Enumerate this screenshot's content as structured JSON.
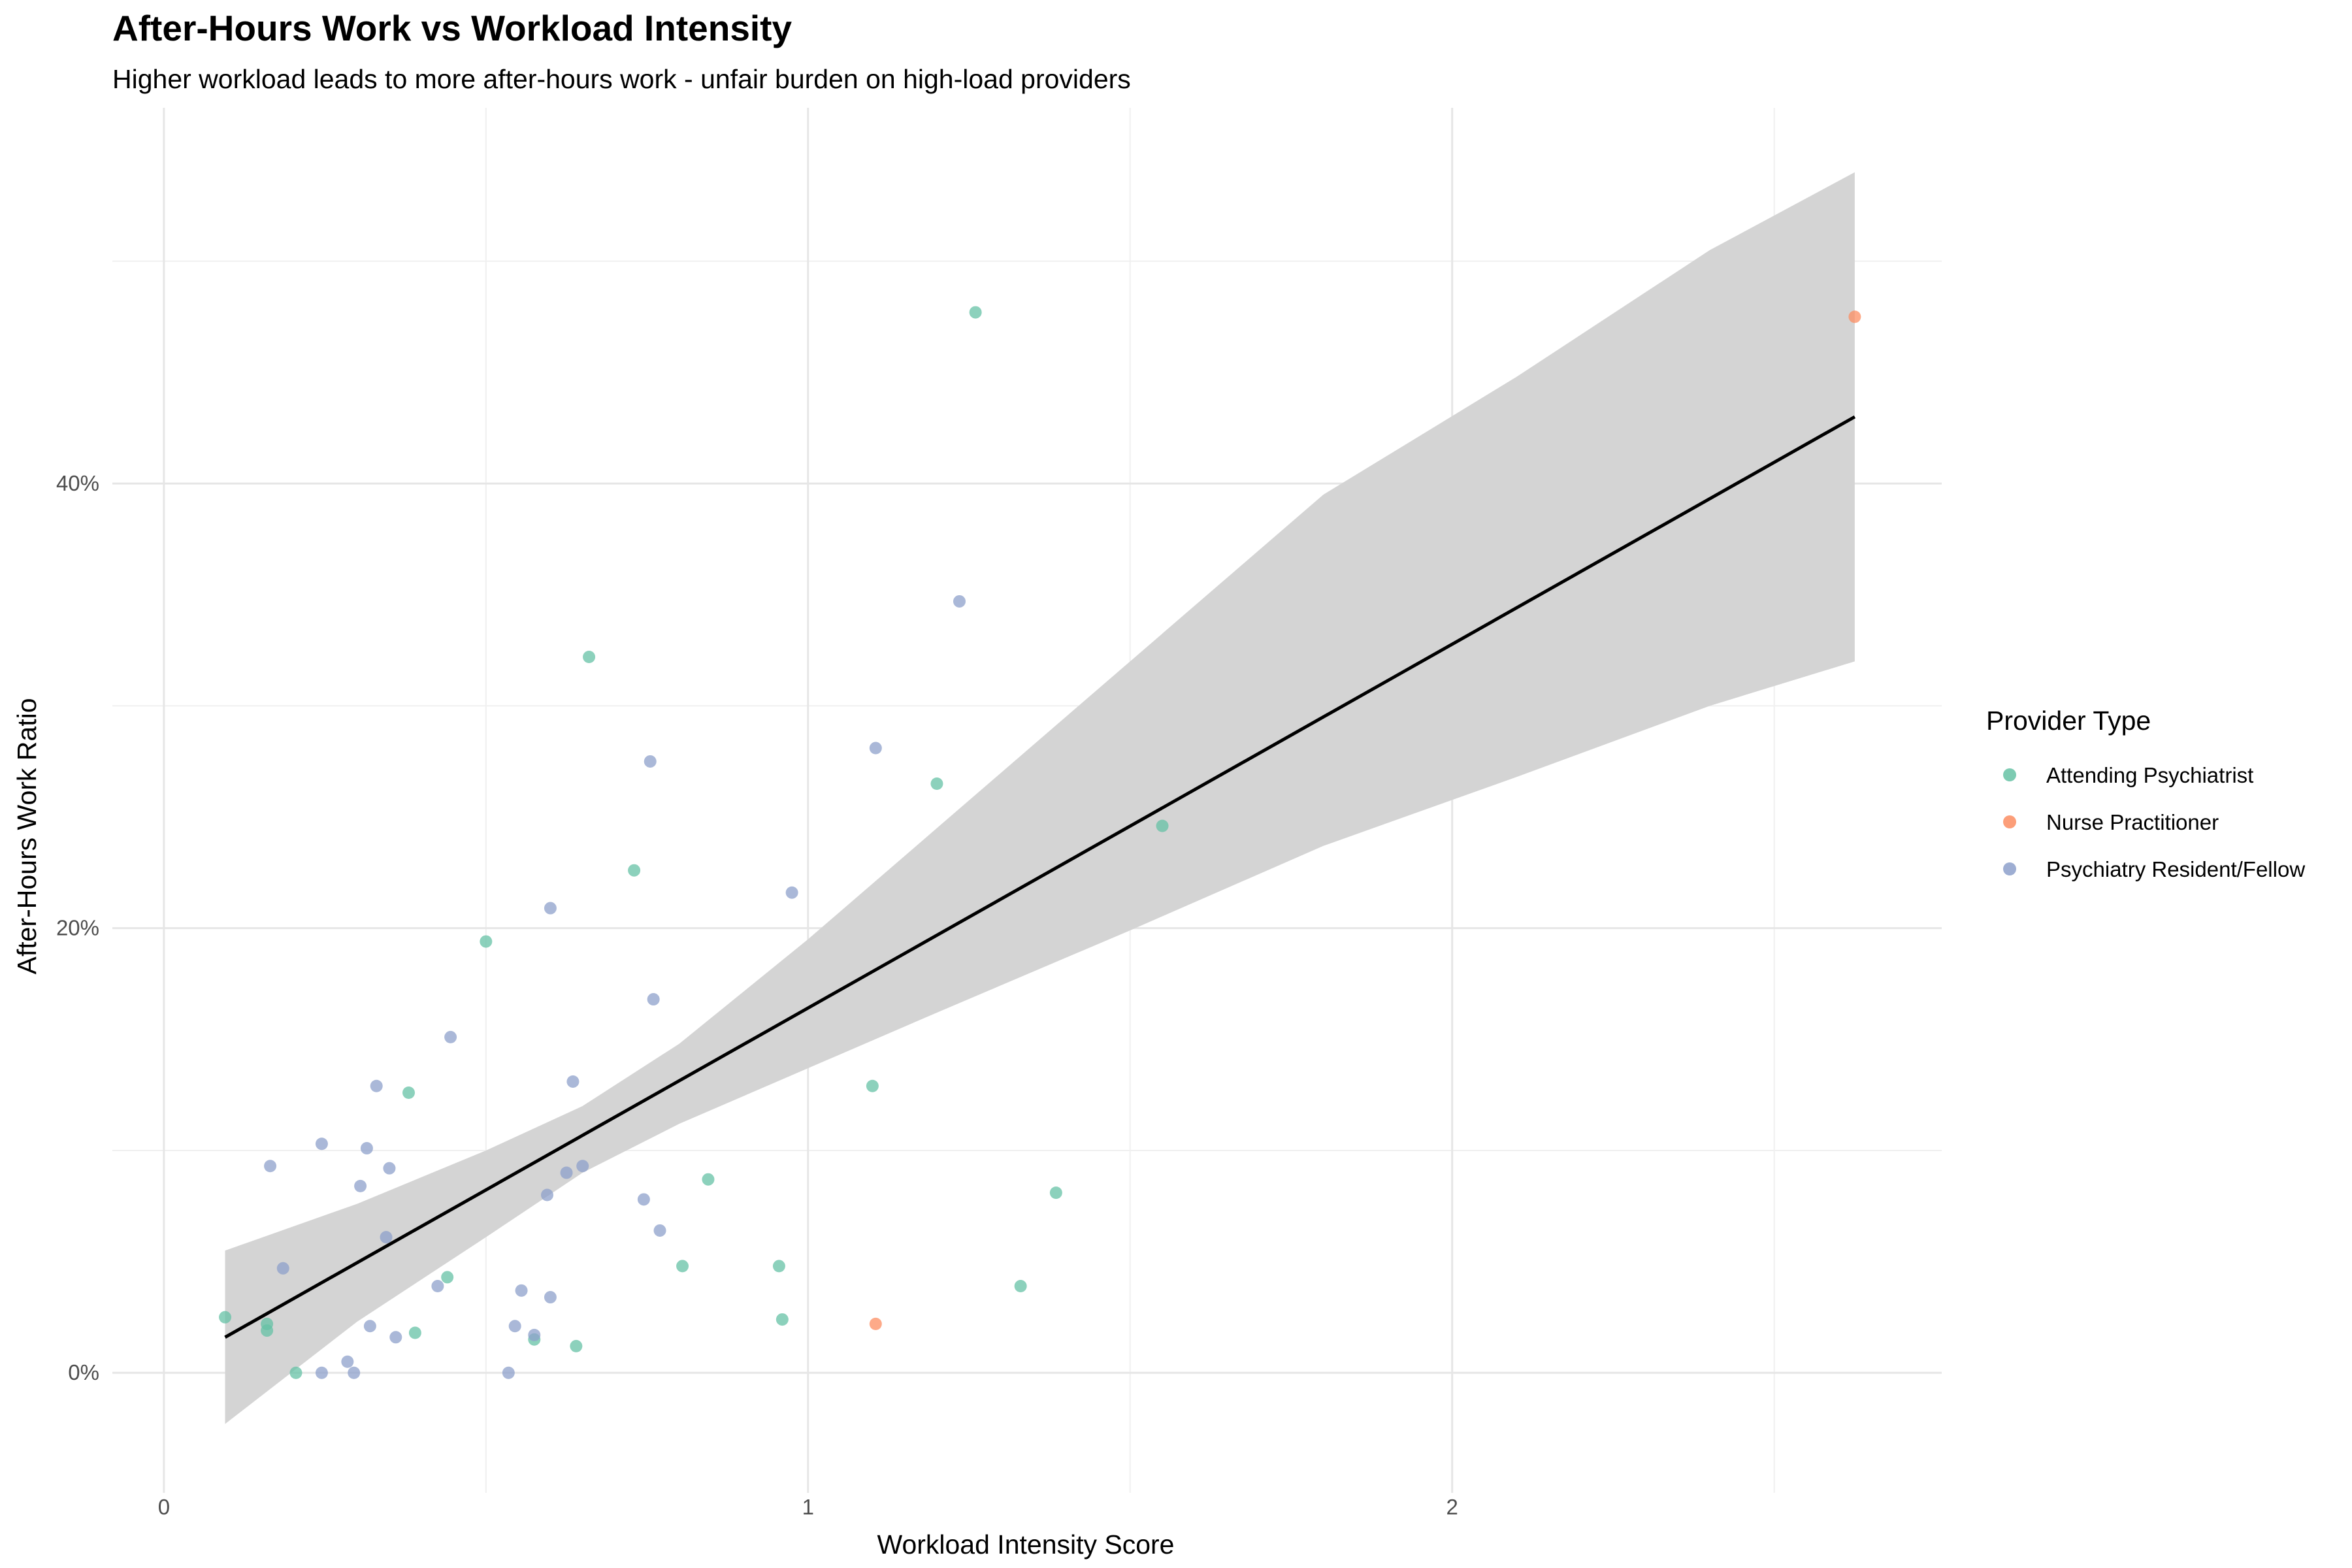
{
  "chart_data": {
    "type": "scatter",
    "title": "After-Hours Work vs Workload Intensity",
    "subtitle": "Higher workload leads to more after-hours work - unfair burden on high-load providers",
    "xlabel": "Workload Intensity Score",
    "ylabel": "After-Hours Work Ratio",
    "xlim": [
      -0.08,
      2.76
    ],
    "ylim": [
      -0.054,
      0.569
    ],
    "x_ticks": [
      {
        "value": 0,
        "label": "0"
      },
      {
        "value": 1,
        "label": "1"
      },
      {
        "value": 2,
        "label": "2"
      }
    ],
    "y_ticks": [
      {
        "value": 0,
        "label": "0%"
      },
      {
        "value": 0.2,
        "label": "20%"
      },
      {
        "value": 0.4,
        "label": "40%"
      }
    ],
    "x_minor_grid": [
      0.5,
      1.5,
      2.5
    ],
    "y_minor_grid": [
      0.1,
      0.3,
      0.5
    ],
    "grid": true,
    "legend": {
      "title": "Provider Type",
      "position": "right"
    },
    "series": [
      {
        "name": "Attending Psychiatrist",
        "color": "#66c2a5",
        "points": [
          [
            0.095,
            0.025
          ],
          [
            0.16,
            0.022
          ],
          [
            0.16,
            0.019
          ],
          [
            0.205,
            0.0
          ],
          [
            0.38,
            0.126
          ],
          [
            0.39,
            0.018
          ],
          [
            0.44,
            0.043
          ],
          [
            0.5,
            0.194
          ],
          [
            0.575,
            0.015
          ],
          [
            0.64,
            0.012
          ],
          [
            0.66,
            0.322
          ],
          [
            0.73,
            0.226
          ],
          [
            0.805,
            0.048
          ],
          [
            0.845,
            0.087
          ],
          [
            0.955,
            0.048
          ],
          [
            0.96,
            0.024
          ],
          [
            1.1,
            0.129
          ],
          [
            1.2,
            0.265
          ],
          [
            1.26,
            0.477
          ],
          [
            1.33,
            0.039
          ],
          [
            1.385,
            0.081
          ],
          [
            1.55,
            0.246
          ]
        ]
      },
      {
        "name": "Nurse Practitioner",
        "color": "#fc8d62",
        "points": [
          [
            1.105,
            0.022
          ],
          [
            2.625,
            0.475
          ]
        ]
      },
      {
        "name": "Psychiatry Resident/Fellow",
        "color": "#8da0cb",
        "points": [
          [
            0.165,
            0.093
          ],
          [
            0.185,
            0.047
          ],
          [
            0.245,
            0.103
          ],
          [
            0.245,
            0.0
          ],
          [
            0.285,
            0.005
          ],
          [
            0.295,
            0.0
          ],
          [
            0.305,
            0.084
          ],
          [
            0.315,
            0.101
          ],
          [
            0.32,
            0.021
          ],
          [
            0.33,
            0.129
          ],
          [
            0.345,
            0.061
          ],
          [
            0.35,
            0.092
          ],
          [
            0.36,
            0.016
          ],
          [
            0.425,
            0.039
          ],
          [
            0.445,
            0.151
          ],
          [
            0.535,
            0.0
          ],
          [
            0.545,
            0.021
          ],
          [
            0.555,
            0.037
          ],
          [
            0.575,
            0.017
          ],
          [
            0.595,
            0.08
          ],
          [
            0.6,
            0.034
          ],
          [
            0.6,
            0.209
          ],
          [
            0.625,
            0.09
          ],
          [
            0.635,
            0.131
          ],
          [
            0.65,
            0.093
          ],
          [
            0.745,
            0.078
          ],
          [
            0.755,
            0.275
          ],
          [
            0.76,
            0.168
          ],
          [
            0.77,
            0.064
          ],
          [
            0.975,
            0.216
          ],
          [
            1.105,
            0.281
          ],
          [
            1.235,
            0.347
          ]
        ]
      }
    ],
    "trend_line": {
      "color": "#000000",
      "x": [
        0.095,
        2.625
      ],
      "y": [
        0.016,
        0.43
      ]
    },
    "confidence_band": {
      "color": "#d4d4d4",
      "x": [
        0.095,
        0.3,
        0.5,
        0.65,
        0.8,
        1.0,
        1.2,
        1.5,
        1.8,
        2.1,
        2.4,
        2.625
      ],
      "upper": [
        0.055,
        0.076,
        0.1,
        0.12,
        0.148,
        0.195,
        0.245,
        0.32,
        0.395,
        0.448,
        0.505,
        0.54
      ],
      "lower": [
        -0.023,
        0.023,
        0.061,
        0.09,
        0.112,
        0.137,
        0.162,
        0.199,
        0.237,
        0.268,
        0.3,
        0.32
      ]
    }
  }
}
